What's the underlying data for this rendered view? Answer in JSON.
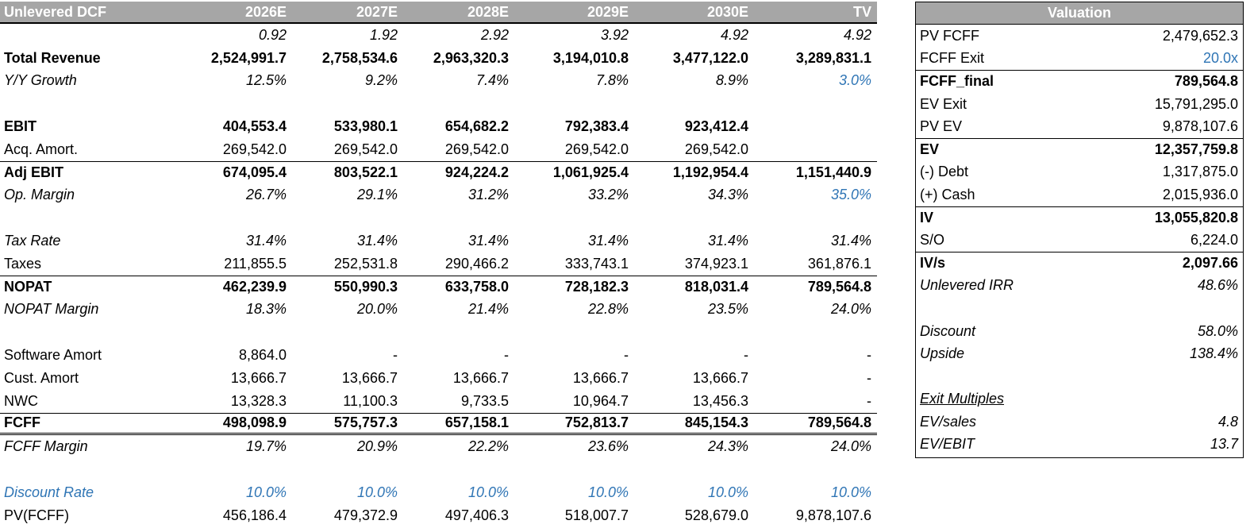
{
  "dcf": {
    "title": "Unlevered DCF",
    "years": [
      "2026E",
      "2027E",
      "2028E",
      "2029E",
      "2030E",
      "TV"
    ],
    "rows": [
      {
        "label": "",
        "values": [
          "0.92",
          "1.92",
          "2.92",
          "3.92",
          "4.92",
          "4.92"
        ]
      },
      {
        "label": "Total Revenue",
        "values": [
          "2,524,991.7",
          "2,758,534.6",
          "2,963,320.3",
          "3,194,010.8",
          "3,477,122.0",
          "3,289,831.1"
        ]
      },
      {
        "label": "Y/Y Growth",
        "values": [
          "12.5%",
          "9.2%",
          "7.4%",
          "7.8%",
          "8.9%",
          "3.0%"
        ]
      },
      {
        "label": "",
        "values": [
          "",
          "",
          "",
          "",
          "",
          ""
        ]
      },
      {
        "label": "EBIT",
        "values": [
          "404,553.4",
          "533,980.1",
          "654,682.2",
          "792,383.4",
          "923,412.4",
          ""
        ]
      },
      {
        "label": "Acq. Amort.",
        "values": [
          "269,542.0",
          "269,542.0",
          "269,542.0",
          "269,542.0",
          "269,542.0",
          ""
        ]
      },
      {
        "label": "Adj EBIT",
        "values": [
          "674,095.4",
          "803,522.1",
          "924,224.2",
          "1,061,925.4",
          "1,192,954.4",
          "1,151,440.9"
        ]
      },
      {
        "label": "Op. Margin",
        "values": [
          "26.7%",
          "29.1%",
          "31.2%",
          "33.2%",
          "34.3%",
          "35.0%"
        ]
      },
      {
        "label": "",
        "values": [
          "",
          "",
          "",
          "",
          "",
          ""
        ]
      },
      {
        "label": "Tax Rate",
        "values": [
          "31.4%",
          "31.4%",
          "31.4%",
          "31.4%",
          "31.4%",
          "31.4%"
        ]
      },
      {
        "label": "Taxes",
        "values": [
          "211,855.5",
          "252,531.8",
          "290,466.2",
          "333,743.1",
          "374,923.1",
          "361,876.1"
        ]
      },
      {
        "label": "NOPAT",
        "values": [
          "462,239.9",
          "550,990.3",
          "633,758.0",
          "728,182.3",
          "818,031.4",
          "789,564.8"
        ]
      },
      {
        "label": "NOPAT Margin",
        "values": [
          "18.3%",
          "20.0%",
          "21.4%",
          "22.8%",
          "23.5%",
          "24.0%"
        ]
      },
      {
        "label": "",
        "values": [
          "",
          "",
          "",
          "",
          "",
          ""
        ]
      },
      {
        "label": "Software Amort",
        "values": [
          "8,864.0",
          "-",
          "-",
          "-",
          "-",
          "-"
        ]
      },
      {
        "label": "Cust. Amort",
        "values": [
          "13,666.7",
          "13,666.7",
          "13,666.7",
          "13,666.7",
          "13,666.7",
          "-"
        ]
      },
      {
        "label": "NWC",
        "values": [
          "13,328.3",
          "11,100.3",
          "9,733.5",
          "10,964.7",
          "13,456.3",
          "-"
        ]
      },
      {
        "label": "FCFF",
        "values": [
          "498,098.9",
          "575,757.3",
          "657,158.1",
          "752,813.7",
          "845,154.3",
          "789,564.8"
        ]
      },
      {
        "label": "FCFF Margin",
        "values": [
          "19.7%",
          "20.9%",
          "22.2%",
          "23.6%",
          "24.3%",
          "24.0%"
        ]
      },
      {
        "label": "",
        "values": [
          "",
          "",
          "",
          "",
          "",
          ""
        ]
      },
      {
        "label": "Discount Rate",
        "values": [
          "10.0%",
          "10.0%",
          "10.0%",
          "10.0%",
          "10.0%",
          "10.0%"
        ]
      },
      {
        "label": "PV(FCFF)",
        "values": [
          "456,186.4",
          "479,372.9",
          "497,406.3",
          "518,007.7",
          "528,679.0",
          "9,878,107.6"
        ]
      }
    ]
  },
  "valuation": {
    "title": "Valuation",
    "rows": [
      {
        "label": "PV FCFF",
        "value": "2,479,652.3"
      },
      {
        "label": "FCFF Exit",
        "value": "20.0x"
      },
      {
        "label": "FCFF_final",
        "value": "789,564.8"
      },
      {
        "label": "EV Exit",
        "value": "15,791,295.0"
      },
      {
        "label": "PV EV",
        "value": "9,878,107.6"
      },
      {
        "label": "EV",
        "value": "12,357,759.8"
      },
      {
        "label": "(-) Debt",
        "value": "1,317,875.0"
      },
      {
        "label": "(+) Cash",
        "value": "2,015,936.0"
      },
      {
        "label": "IV",
        "value": "13,055,820.8"
      },
      {
        "label": "S/O",
        "value": "6,224.0"
      },
      {
        "label": "IV/s",
        "value": "2,097.66"
      },
      {
        "label": "Unlevered IRR",
        "value": "48.6%"
      },
      {
        "label": "",
        "value": ""
      },
      {
        "label": "Discount",
        "value": "58.0%"
      },
      {
        "label": "Upside",
        "value": "138.4%"
      },
      {
        "label": "",
        "value": ""
      },
      {
        "label": "Exit Multiples",
        "value": ""
      },
      {
        "label": "EV/sales",
        "value": "4.8"
      },
      {
        "label": "EV/EBIT",
        "value": "13.7"
      }
    ]
  },
  "colors": {
    "header_bg": "#a6a6a6",
    "input_blue": "#2f75b5"
  }
}
